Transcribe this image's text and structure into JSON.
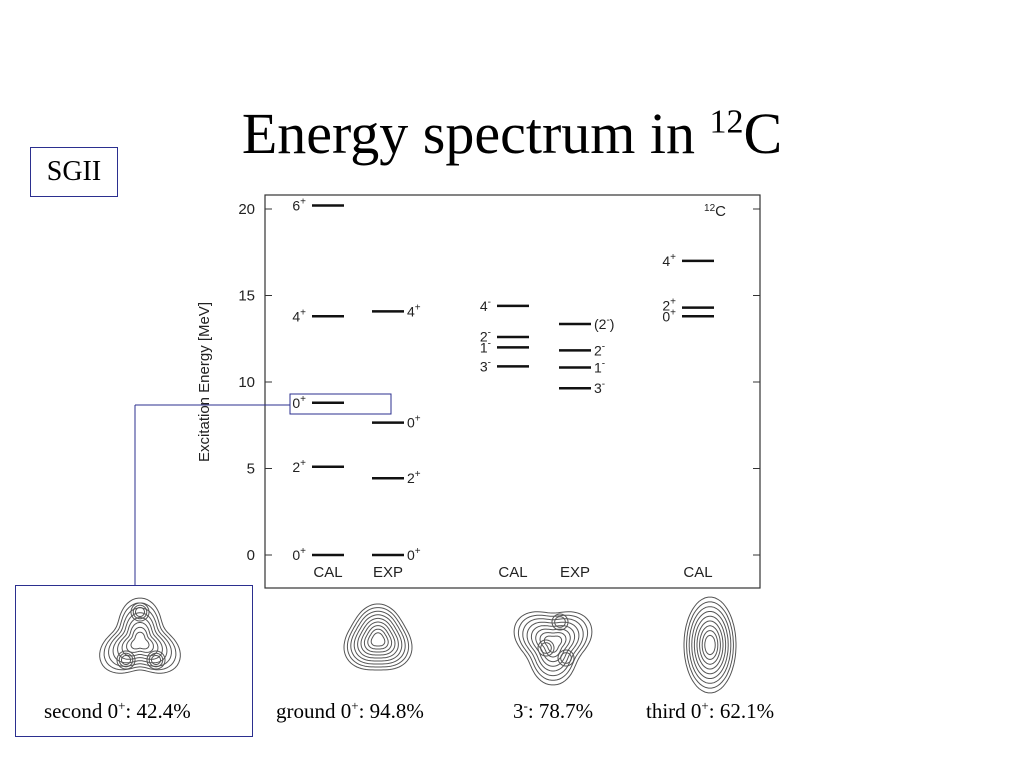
{
  "slide": {
    "title_main": "Energy spectrum in ",
    "title_sup": "12",
    "title_tail": "C",
    "method_label": "SGII"
  },
  "chart_data": {
    "type": "level-scheme",
    "title": "",
    "ylabel": "Excitation Energy [MeV]",
    "ylim": [
      -1,
      21
    ],
    "yticks": [
      0,
      5,
      10,
      15,
      20
    ],
    "corner_label": "12C",
    "columns": [
      {
        "name": "CAL",
        "label_side": "left",
        "levels": [
          {
            "label": "0+",
            "e": 0
          },
          {
            "label": "2+",
            "e": 5.1
          },
          {
            "label": "0+",
            "e": 8.8
          },
          {
            "label": "4+",
            "e": 13.8
          },
          {
            "label": "6+",
            "e": 20.2
          }
        ]
      },
      {
        "name": "EXP",
        "label_side": "right",
        "levels": [
          {
            "label": "0+",
            "e": 0
          },
          {
            "label": "2+",
            "e": 4.44
          },
          {
            "label": "0+",
            "e": 7.65
          },
          {
            "label": "4+",
            "e": 14.08
          }
        ]
      },
      {
        "name": "CAL",
        "label_side": "left",
        "levels": [
          {
            "label": "3-",
            "e": 10.9
          },
          {
            "label": "1-",
            "e": 12.0
          },
          {
            "label": "2-",
            "e": 12.6
          },
          {
            "label": "4-",
            "e": 14.4
          }
        ]
      },
      {
        "name": "EXP",
        "label_side": "right",
        "levels": [
          {
            "label": "3-",
            "e": 9.64
          },
          {
            "label": "1-",
            "e": 10.84
          },
          {
            "label": "2-",
            "e": 11.83
          },
          {
            "label": "(2-)",
            "e": 13.35
          }
        ]
      },
      {
        "name": "CAL",
        "label_side": "left",
        "levels": [
          {
            "label": "0+",
            "e": 13.8
          },
          {
            "label": "2+",
            "e": 14.3
          },
          {
            "label": "4+",
            "e": 17.0
          }
        ]
      }
    ]
  },
  "density_plots": [
    {
      "caption_pre": "second 0",
      "caption_sup": "+",
      "caption_post": ": 42.4%"
    },
    {
      "caption_pre": "ground 0",
      "caption_sup": "+",
      "caption_post": ": 94.8%"
    },
    {
      "caption_pre": "3",
      "caption_sup": "-",
      "caption_post": ": 78.7%"
    },
    {
      "caption_pre": "third 0",
      "caption_sup": "+",
      "caption_post": ": 62.1%"
    }
  ]
}
